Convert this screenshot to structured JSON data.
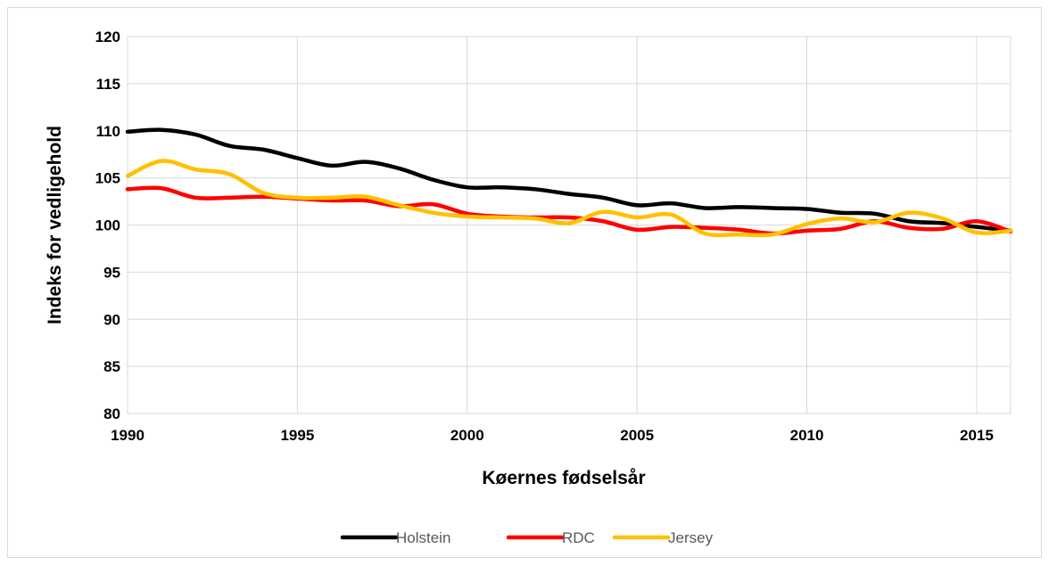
{
  "chart_data": {
    "type": "line",
    "title": "",
    "xlabel": "Køernes fødselsår",
    "ylabel": "Indeks for vedligehold",
    "xlim": [
      1990,
      2016
    ],
    "ylim": [
      80,
      120
    ],
    "x_ticks": [
      1990,
      1995,
      2000,
      2005,
      2010,
      2015
    ],
    "y_ticks": [
      80,
      85,
      90,
      95,
      100,
      105,
      110,
      115,
      120
    ],
    "grid": true,
    "legend_position": "bottom",
    "x": [
      1990,
      1991,
      1992,
      1993,
      1994,
      1995,
      1996,
      1997,
      1998,
      1999,
      2000,
      2001,
      2002,
      2003,
      2004,
      2005,
      2006,
      2007,
      2008,
      2009,
      2010,
      2011,
      2012,
      2013,
      2014,
      2015,
      2016
    ],
    "series": [
      {
        "name": "Holstein",
        "color": "#000000",
        "values": [
          109.9,
          110.1,
          109.6,
          108.4,
          108.0,
          107.1,
          106.3,
          106.7,
          106.0,
          104.8,
          104.0,
          104.0,
          103.8,
          103.3,
          102.9,
          102.1,
          102.3,
          101.8,
          101.9,
          101.8,
          101.7,
          101.3,
          101.2,
          100.4,
          100.2,
          99.8,
          99.4
        ]
      },
      {
        "name": "RDC",
        "color": "#ff0000",
        "values": [
          103.8,
          103.9,
          102.9,
          102.9,
          103.0,
          102.8,
          102.6,
          102.6,
          102.0,
          102.2,
          101.2,
          100.9,
          100.8,
          100.8,
          100.4,
          99.5,
          99.8,
          99.7,
          99.5,
          99.1,
          99.4,
          99.6,
          100.4,
          99.7,
          99.6,
          100.4,
          99.3
        ]
      },
      {
        "name": "Jersey",
        "color": "#ffc000",
        "values": [
          105.2,
          106.8,
          105.9,
          105.4,
          103.4,
          102.9,
          102.9,
          103.0,
          102.1,
          101.3,
          100.9,
          100.8,
          100.7,
          100.2,
          101.4,
          100.8,
          101.1,
          99.1,
          99.0,
          99.0,
          100.1,
          100.7,
          100.3,
          101.3,
          100.7,
          99.2,
          99.4
        ]
      }
    ]
  }
}
